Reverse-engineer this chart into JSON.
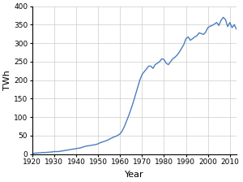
{
  "years": [
    1920,
    1921,
    1922,
    1923,
    1924,
    1925,
    1926,
    1927,
    1928,
    1929,
    1930,
    1931,
    1932,
    1933,
    1934,
    1935,
    1936,
    1937,
    1938,
    1939,
    1940,
    1941,
    1942,
    1943,
    1944,
    1945,
    1946,
    1947,
    1948,
    1949,
    1950,
    1951,
    1952,
    1953,
    1954,
    1955,
    1956,
    1957,
    1958,
    1959,
    1960,
    1961,
    1962,
    1963,
    1964,
    1965,
    1966,
    1967,
    1968,
    1969,
    1970,
    1971,
    1972,
    1973,
    1974,
    1975,
    1976,
    1977,
    1978,
    1979,
    1980,
    1981,
    1982,
    1983,
    1984,
    1985,
    1986,
    1987,
    1988,
    1989,
    1990,
    1991,
    1992,
    1993,
    1994,
    1995,
    1996,
    1997,
    1998,
    1999,
    2000,
    2001,
    2002,
    2003,
    2004,
    2005,
    2006,
    2007,
    2008,
    2009,
    2010,
    2011,
    2012,
    2013
  ],
  "values": [
    2,
    2.5,
    3,
    3.5,
    4,
    4.5,
    4.5,
    5,
    5.5,
    6,
    7,
    7,
    7,
    8,
    9,
    10,
    11,
    12,
    13,
    14,
    15,
    16,
    17,
    19,
    21,
    22,
    23,
    24,
    25,
    26,
    28,
    31,
    33,
    35,
    37,
    40,
    43,
    46,
    48,
    51,
    55,
    63,
    75,
    90,
    105,
    122,
    140,
    160,
    180,
    200,
    215,
    223,
    230,
    238,
    238,
    232,
    242,
    246,
    250,
    258,
    256,
    246,
    242,
    250,
    258,
    262,
    268,
    276,
    286,
    296,
    312,
    317,
    308,
    312,
    317,
    320,
    328,
    326,
    324,
    330,
    342,
    346,
    348,
    352,
    356,
    348,
    362,
    370,
    364,
    345,
    356,
    342,
    350,
    338
  ],
  "line_color": "#4a7ebf",
  "line_width": 1.0,
  "xlabel": "Year",
  "ylabel": "TWh",
  "xlim": [
    1920,
    2013
  ],
  "ylim": [
    0,
    400
  ],
  "yticks": [
    0,
    50,
    100,
    150,
    200,
    250,
    300,
    350,
    400
  ],
  "xticks": [
    1920,
    1930,
    1940,
    1950,
    1960,
    1970,
    1980,
    1990,
    2000,
    2010
  ],
  "grid_color": "#cccccc",
  "bg_color": "#ffffff",
  "tick_fontsize": 6.5,
  "label_fontsize": 8
}
